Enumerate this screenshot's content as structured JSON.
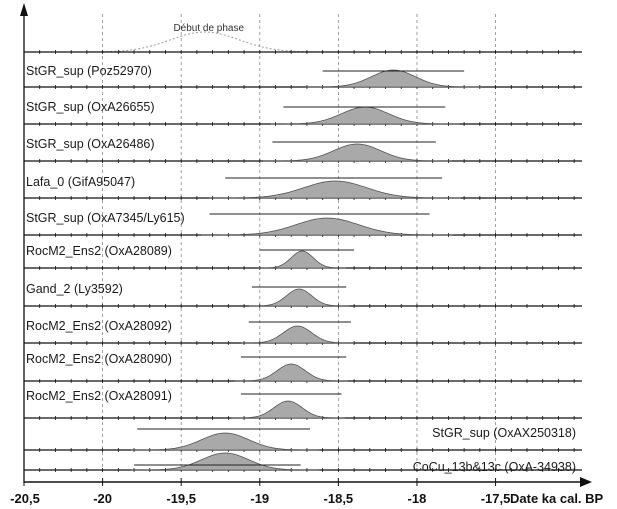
{
  "chart_data": {
    "type": "density",
    "xlabel": "Date ka cal. BP",
    "xlim": [
      -20.5,
      -16.95
    ],
    "x_ticks": [
      {
        "value": -20.5,
        "label": "-20,5"
      },
      {
        "value": -20,
        "label": "-20"
      },
      {
        "value": -19.5,
        "label": "-19,5"
      },
      {
        "value": -19,
        "label": "-19"
      },
      {
        "value": -18.5,
        "label": "-18,5"
      },
      {
        "value": -18,
        "label": "-18"
      },
      {
        "value": -17.5,
        "label": "-17,5"
      }
    ],
    "grid": "vertical dashed",
    "boundary": {
      "label": "Début de phase",
      "center": -19.35,
      "sd": 0.22
    },
    "rows": [
      {
        "label": "StGR_sup (Poz52970)",
        "label_side": "left",
        "center": -18.15,
        "sd": 0.14,
        "range": [
          -18.6,
          -17.7
        ]
      },
      {
        "label": "StGR_sup (OxA26655)",
        "label_side": "left",
        "center": -18.33,
        "sd": 0.15,
        "range": [
          -18.85,
          -17.82
        ]
      },
      {
        "label": "StGR_sup (OxA26486)",
        "label_side": "left",
        "center": -18.38,
        "sd": 0.15,
        "range": [
          -18.92,
          -17.88
        ]
      },
      {
        "label": "Lafa_0 (GifA95047)",
        "label_side": "left",
        "center": -18.52,
        "sd": 0.2,
        "range": [
          -19.22,
          -17.84
        ]
      },
      {
        "label": "StGR_sup (OxA7345/Ly615)",
        "label_side": "left",
        "center": -18.57,
        "sd": 0.2,
        "range": [
          -19.32,
          -17.92
        ]
      },
      {
        "label": "RocM2_Ens2 (OxA28089)",
        "label_side": "left",
        "center": -18.73,
        "sd": 0.07,
        "range": [
          -19.0,
          -18.4
        ]
      },
      {
        "label": "Gand_2 (Ly3592)",
        "label_side": "left",
        "center": -18.75,
        "sd": 0.08,
        "range": [
          -19.05,
          -18.45
        ]
      },
      {
        "label": "RocM2_Ens2 (OxA28092)",
        "label_side": "left",
        "center": -18.76,
        "sd": 0.09,
        "range": [
          -19.07,
          -18.42
        ]
      },
      {
        "label": "RocM2_Ens2 (OxA28090)",
        "label_side": "left",
        "center": -18.8,
        "sd": 0.09,
        "range": [
          -19.12,
          -18.45
        ]
      },
      {
        "label": "RocM2_Ens2 (OxA28091)",
        "label_side": "left",
        "center": -18.82,
        "sd": 0.09,
        "range": [
          -19.12,
          -18.48
        ]
      },
      {
        "label": "StGR_sup (OxAX250318)",
        "label_side": "right",
        "center": -19.22,
        "sd": 0.15,
        "range": [
          -19.78,
          -18.68
        ]
      },
      {
        "label": "CoCu_13b&13c (OxA-34938)",
        "label_side": "right",
        "center": -19.22,
        "sd": 0.15,
        "range": [
          -19.8,
          -18.74
        ]
      }
    ]
  }
}
